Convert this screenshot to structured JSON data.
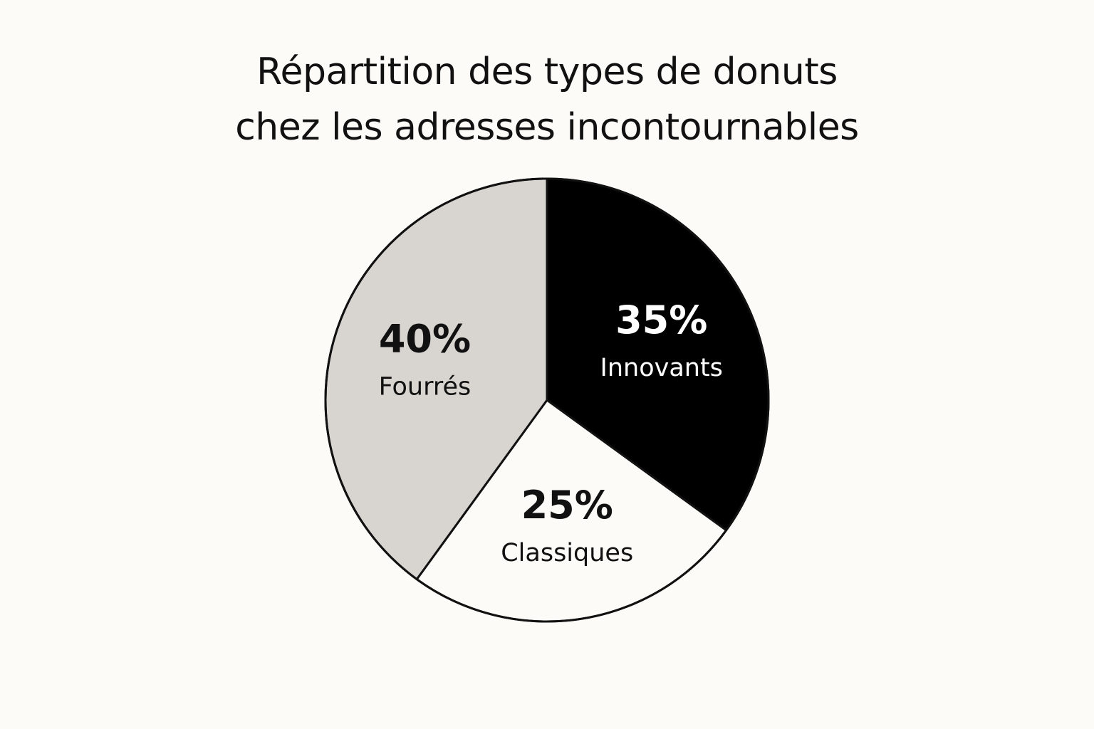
{
  "chart_data": {
    "type": "pie",
    "title_lines": [
      "Répartition des types de donuts",
      "chez les adresses incontournables"
    ],
    "slices": [
      {
        "label": "Innovants",
        "value": 35,
        "value_label": "35%",
        "color": "#000000",
        "text_color": "#ffffff"
      },
      {
        "label": "Classiques",
        "value": 25,
        "value_label": "25%",
        "color": "#fcfbf7",
        "text_color": "#111111"
      },
      {
        "label": "Fourrés",
        "value": 40,
        "value_label": "40%",
        "color": "#d8d4d0",
        "text_color": "#111111"
      }
    ],
    "start_angle": "12 o'clock",
    "direction": "clockwise",
    "outline_color": "#111111",
    "legend": "none"
  }
}
